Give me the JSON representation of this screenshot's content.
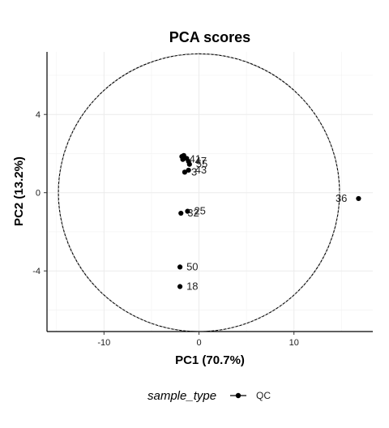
{
  "chart_data": {
    "type": "scatter",
    "title": "PCA scores",
    "xlabel": "PC1 (70.7%)",
    "ylabel": "PC2 (13.2%)",
    "xlim": [
      -16,
      18.3
    ],
    "ylim": [
      -7.1,
      7.2
    ],
    "xticks": [
      -10,
      0,
      10
    ],
    "xtick_labels": [
      "-10",
      "0",
      "10"
    ],
    "yticks": [
      -4,
      0,
      4
    ],
    "ytick_labels": [
      "-4",
      "0",
      "4"
    ],
    "grid": true,
    "ellipse": {
      "center": [
        0,
        0
      ],
      "rx": 14.8,
      "ry": 7.1
    },
    "points": [
      {
        "x": -1.8,
        "y": 1.85,
        "label": ""
      },
      {
        "x": -1.6,
        "y": 1.9,
        "label": ""
      },
      {
        "x": -1.7,
        "y": 1.7,
        "label": "41"
      },
      {
        "x": -1.3,
        "y": 1.75,
        "label": ""
      },
      {
        "x": -1.1,
        "y": 1.6,
        "label": "47"
      },
      {
        "x": -1.0,
        "y": 1.45,
        "label": "55"
      },
      {
        "x": -1.5,
        "y": 1.05,
        "label": "3"
      },
      {
        "x": -1.1,
        "y": 1.15,
        "label": "43"
      },
      {
        "x": -1.9,
        "y": -1.05,
        "label": "32"
      },
      {
        "x": -1.2,
        "y": -0.95,
        "label": "25"
      },
      {
        "x": 16.8,
        "y": -0.3,
        "label": "36"
      },
      {
        "x": -2.0,
        "y": -3.8,
        "label": "50"
      },
      {
        "x": -2.0,
        "y": -4.8,
        "label": "18"
      }
    ],
    "legend": {
      "title": "sample_type",
      "entries": [
        "QC"
      ],
      "position": "bottom"
    }
  }
}
